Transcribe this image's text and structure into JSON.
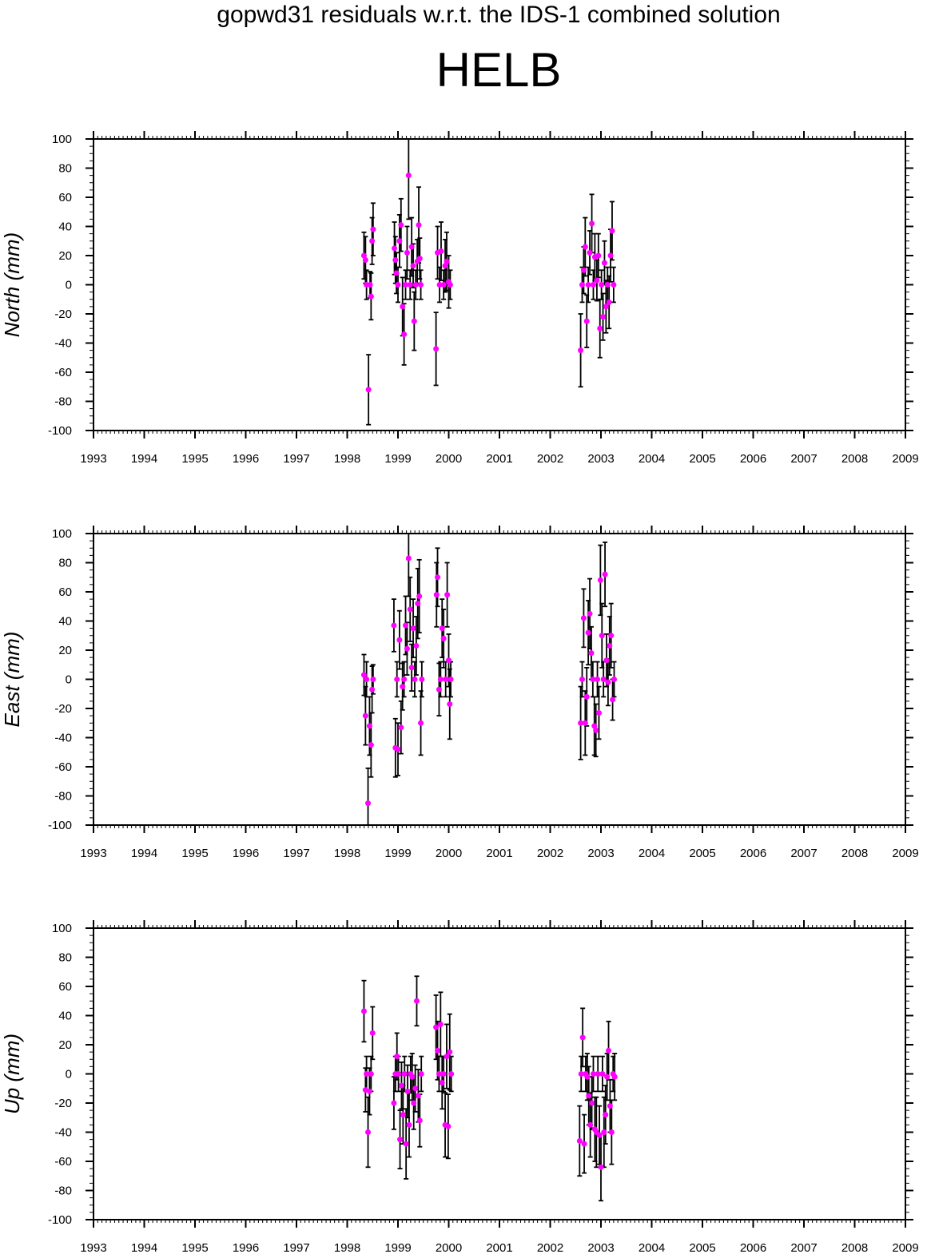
{
  "title": "gopwd31 residuals w.r.t. the IDS-1 combined solution",
  "subtitle": "HELB",
  "colors": {
    "point": "#ff00ff",
    "errorbar": "#000000",
    "axis": "#000000"
  },
  "chart_data": [
    {
      "type": "scatter",
      "name": "north",
      "ylabel": "North (mm)",
      "xlim": [
        1993,
        2009
      ],
      "ylim": [
        -100,
        100
      ],
      "xticks": [
        "1993",
        "1994",
        "1995",
        "1996",
        "1997",
        "1998",
        "1999",
        "2000",
        "2001",
        "2002",
        "2003",
        "2004",
        "2005",
        "2006",
        "2007",
        "2008",
        "2009"
      ],
      "yticks": [
        "100",
        "80",
        "60",
        "40",
        "20",
        "0",
        "-20",
        "-40",
        "-60",
        "-80",
        "-100"
      ],
      "error_bars": true,
      "points": [
        [
          1998.33,
          20,
          16
        ],
        [
          1998.36,
          17,
          16
        ],
        [
          1998.38,
          0,
          10
        ],
        [
          1998.42,
          -72,
          24
        ],
        [
          1998.45,
          0,
          9
        ],
        [
          1998.47,
          -8,
          16
        ],
        [
          1998.49,
          30,
          16
        ],
        [
          1998.51,
          38,
          18
        ],
        [
          1998.93,
          25,
          18
        ],
        [
          1998.95,
          17,
          16
        ],
        [
          1998.97,
          8,
          14
        ],
        [
          1999.0,
          0,
          12
        ],
        [
          1999.03,
          30,
          18
        ],
        [
          1999.06,
          41,
          18
        ],
        [
          1999.09,
          -15,
          20
        ],
        [
          1999.12,
          -34,
          21
        ],
        [
          1999.15,
          0,
          10
        ],
        [
          1999.18,
          22,
          18
        ],
        [
          1999.21,
          75,
          30
        ],
        [
          1999.24,
          0,
          10
        ],
        [
          1999.27,
          26,
          20
        ],
        [
          1999.3,
          13,
          15
        ],
        [
          1999.32,
          -25,
          20
        ],
        [
          1999.35,
          0,
          10
        ],
        [
          1999.38,
          16,
          15
        ],
        [
          1999.41,
          41,
          26
        ],
        [
          1999.43,
          18,
          14
        ],
        [
          1999.45,
          0,
          10
        ],
        [
          1999.75,
          -44,
          25
        ],
        [
          1999.78,
          22,
          18
        ],
        [
          1999.82,
          0,
          12
        ],
        [
          1999.85,
          23,
          20
        ],
        [
          1999.9,
          0,
          10
        ],
        [
          1999.93,
          13,
          18
        ],
        [
          1999.96,
          16,
          20
        ],
        [
          2000.0,
          2,
          18
        ],
        [
          2000.03,
          0,
          10
        ],
        [
          2002.6,
          -45,
          25
        ],
        [
          2002.63,
          0,
          12
        ],
        [
          2002.66,
          10,
          16
        ],
        [
          2002.69,
          26,
          20
        ],
        [
          2002.72,
          -25,
          18
        ],
        [
          2002.75,
          0,
          12
        ],
        [
          2002.78,
          22,
          15
        ],
        [
          2002.82,
          42,
          20
        ],
        [
          2002.85,
          0,
          10
        ],
        [
          2002.88,
          19,
          16
        ],
        [
          2002.92,
          3,
          14
        ],
        [
          2002.95,
          20,
          15
        ],
        [
          2002.98,
          -30,
          20
        ],
        [
          2003.01,
          0,
          10
        ],
        [
          2003.04,
          -22,
          16
        ],
        [
          2003.07,
          15,
          15
        ],
        [
          2003.1,
          -15,
          18
        ],
        [
          2003.13,
          0,
          12
        ],
        [
          2003.16,
          -12,
          18
        ],
        [
          2003.19,
          20,
          18
        ],
        [
          2003.22,
          37,
          20
        ],
        [
          2003.25,
          0,
          12
        ]
      ]
    },
    {
      "type": "scatter",
      "name": "east",
      "ylabel": "East (mm)",
      "xlim": [
        1993,
        2009
      ],
      "ylim": [
        -100,
        100
      ],
      "xticks": [
        "1993",
        "1994",
        "1995",
        "1996",
        "1997",
        "1998",
        "1999",
        "2000",
        "2001",
        "2002",
        "2003",
        "2004",
        "2005",
        "2006",
        "2007",
        "2008",
        "2009"
      ],
      "yticks": [
        "100",
        "80",
        "60",
        "40",
        "20",
        "0",
        "-20",
        "-40",
        "-60",
        "-80",
        "-100"
      ],
      "error_bars": true,
      "points": [
        [
          1998.33,
          3,
          14
        ],
        [
          1998.36,
          -25,
          20
        ],
        [
          1998.38,
          0,
          12
        ],
        [
          1998.41,
          -85,
          24
        ],
        [
          1998.44,
          -32,
          20
        ],
        [
          1998.47,
          -45,
          22
        ],
        [
          1998.49,
          -7,
          16
        ],
        [
          1998.51,
          0,
          10
        ],
        [
          1998.92,
          37,
          18
        ],
        [
          1998.95,
          -47,
          20
        ],
        [
          1998.98,
          0,
          12
        ],
        [
          1999.0,
          -48,
          18
        ],
        [
          1999.03,
          27,
          20
        ],
        [
          1999.06,
          -33,
          18
        ],
        [
          1999.09,
          -5,
          16
        ],
        [
          1999.12,
          0,
          12
        ],
        [
          1999.15,
          37,
          20
        ],
        [
          1999.18,
          21,
          18
        ],
        [
          1999.21,
          83,
          26
        ],
        [
          1999.24,
          48,
          22
        ],
        [
          1999.27,
          8,
          16
        ],
        [
          1999.3,
          35,
          20
        ],
        [
          1999.33,
          0,
          12
        ],
        [
          1999.36,
          23,
          20
        ],
        [
          1999.39,
          52,
          24
        ],
        [
          1999.42,
          57,
          25
        ],
        [
          1999.45,
          -30,
          22
        ],
        [
          1999.47,
          0,
          12
        ],
        [
          1999.76,
          58,
          22
        ],
        [
          1999.78,
          70,
          20
        ],
        [
          1999.81,
          -7,
          18
        ],
        [
          1999.84,
          0,
          12
        ],
        [
          1999.87,
          35,
          20
        ],
        [
          1999.9,
          28,
          20
        ],
        [
          1999.94,
          0,
          12
        ],
        [
          1999.97,
          58,
          22
        ],
        [
          2000.0,
          13,
          18
        ],
        [
          2000.02,
          -17,
          24
        ],
        [
          2000.04,
          0,
          12
        ],
        [
          2002.6,
          -30,
          25
        ],
        [
          2002.63,
          0,
          12
        ],
        [
          2002.66,
          42,
          20
        ],
        [
          2002.69,
          -30,
          22
        ],
        [
          2002.72,
          -12,
          20
        ],
        [
          2002.75,
          32,
          22
        ],
        [
          2002.78,
          45,
          24
        ],
        [
          2002.81,
          18,
          18
        ],
        [
          2002.84,
          0,
          12
        ],
        [
          2002.87,
          -32,
          20
        ],
        [
          2002.9,
          -35,
          18
        ],
        [
          2002.93,
          0,
          12
        ],
        [
          2002.96,
          -23,
          18
        ],
        [
          2002.99,
          68,
          24
        ],
        [
          2003.02,
          30,
          22
        ],
        [
          2003.05,
          0,
          12
        ],
        [
          2003.08,
          72,
          22
        ],
        [
          2003.11,
          13,
          18
        ],
        [
          2003.14,
          -2,
          16
        ],
        [
          2003.17,
          23,
          20
        ],
        [
          2003.2,
          30,
          22
        ],
        [
          2003.23,
          -14,
          14
        ],
        [
          2003.26,
          0,
          12
        ]
      ]
    },
    {
      "type": "scatter",
      "name": "up",
      "ylabel": "Up (mm)",
      "xlim": [
        1993,
        2009
      ],
      "ylim": [
        -100,
        100
      ],
      "xticks": [
        "1993",
        "1994",
        "1995",
        "1996",
        "1997",
        "1998",
        "1999",
        "2000",
        "2001",
        "2002",
        "2003",
        "2004",
        "2005",
        "2006",
        "2007",
        "2008",
        "2009"
      ],
      "yticks": [
        "100",
        "80",
        "60",
        "40",
        "20",
        "0",
        "-20",
        "-40",
        "-60",
        "-80",
        "-100"
      ],
      "error_bars": true,
      "points": [
        [
          1998.33,
          43,
          21
        ],
        [
          1998.36,
          -11,
          15
        ],
        [
          1998.38,
          0,
          12
        ],
        [
          1998.41,
          -40,
          24
        ],
        [
          1998.44,
          -12,
          16
        ],
        [
          1998.47,
          0,
          12
        ],
        [
          1998.5,
          28,
          18
        ],
        [
          1998.92,
          -20,
          18
        ],
        [
          1998.95,
          0,
          12
        ],
        [
          1998.98,
          12,
          16
        ],
        [
          1999.01,
          0,
          12
        ],
        [
          1999.04,
          -45,
          20
        ],
        [
          1999.07,
          -8,
          16
        ],
        [
          1999.1,
          -28,
          20
        ],
        [
          1999.13,
          0,
          12
        ],
        [
          1999.16,
          -48,
          24
        ],
        [
          1999.19,
          -12,
          18
        ],
        [
          1999.22,
          -35,
          22
        ],
        [
          1999.25,
          0,
          12
        ],
        [
          1999.28,
          -2,
          16
        ],
        [
          1999.31,
          -20,
          18
        ],
        [
          1999.34,
          -10,
          16
        ],
        [
          1999.37,
          50,
          17
        ],
        [
          1999.4,
          -15,
          18
        ],
        [
          1999.43,
          -32,
          18
        ],
        [
          1999.46,
          0,
          12
        ],
        [
          1999.75,
          32,
          22
        ],
        [
          1999.78,
          16,
          20
        ],
        [
          1999.81,
          0,
          12
        ],
        [
          1999.84,
          34,
          22
        ],
        [
          1999.87,
          -6,
          18
        ],
        [
          1999.9,
          0,
          12
        ],
        [
          1999.93,
          -35,
          22
        ],
        [
          1999.96,
          12,
          22
        ],
        [
          1999.99,
          -36,
          22
        ],
        [
          2000.02,
          15,
          26
        ],
        [
          2000.05,
          0,
          12
        ],
        [
          2002.58,
          -46,
          24
        ],
        [
          2002.61,
          0,
          12
        ],
        [
          2002.64,
          25,
          20
        ],
        [
          2002.67,
          -48,
          20
        ],
        [
          2002.7,
          0,
          12
        ],
        [
          2002.73,
          -2,
          16
        ],
        [
          2002.76,
          -15,
          20
        ],
        [
          2002.79,
          -35,
          22
        ],
        [
          2002.82,
          -20,
          18
        ],
        [
          2002.85,
          0,
          12
        ],
        [
          2002.88,
          -38,
          22
        ],
        [
          2002.91,
          -40,
          24
        ],
        [
          2002.94,
          0,
          12
        ],
        [
          2002.97,
          -42,
          20
        ],
        [
          2003.0,
          -64,
          23
        ],
        [
          2003.03,
          0,
          12
        ],
        [
          2003.06,
          -40,
          24
        ],
        [
          2003.09,
          -28,
          20
        ],
        [
          2003.12,
          -2,
          16
        ],
        [
          2003.15,
          16,
          20
        ],
        [
          2003.18,
          -22,
          18
        ],
        [
          2003.21,
          -40,
          22
        ],
        [
          2003.24,
          0,
          12
        ],
        [
          2003.27,
          -2,
          16
        ]
      ]
    }
  ]
}
